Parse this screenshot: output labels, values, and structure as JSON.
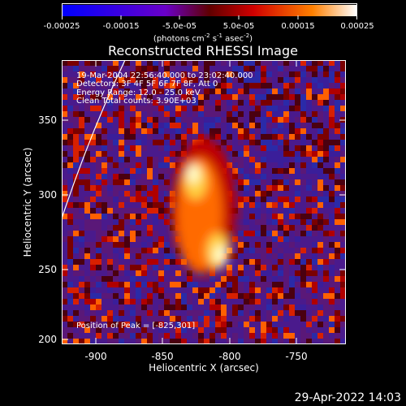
{
  "colorbar": {
    "ticks": [
      "-0.00025",
      "-0.00015",
      "-5.0e-05",
      "5.0e-05",
      "0.00015",
      "0.00025"
    ],
    "units_prefix": "(photons cm",
    "units_exp1": "-2",
    "units_mid": " s",
    "units_exp2": "-1",
    "units_mid2": " asec",
    "units_exp3": "-2",
    "units_suffix": ")",
    "colors": [
      "#0000ff",
      "#6a00c8",
      "#600000",
      "#d00000",
      "#ff8000",
      "#ffffff"
    ]
  },
  "title": "Reconstructed RHESSI Image",
  "info": {
    "time": "19-Mar-2004 22:56:40.000 to 23:02:40.000",
    "detectors": "Detectors: 3F 4F 5F 6F 7F 8F, Att 0",
    "energy": "Energy Range: 12.0 - 25.0 keV",
    "clean": "Clean    Total counts: 3.90E+03",
    "peak": "Position of Peak = [-825,301]"
  },
  "xaxis": {
    "label": "Heliocentric X (arcsec)",
    "ticks": [
      "-900",
      "-850",
      "-800",
      "-750"
    ]
  },
  "yaxis": {
    "label": "Heliocentric Y (arcsec)",
    "ticks": [
      "350",
      "300",
      "250",
      "200"
    ]
  },
  "timestamp": "29-Apr-2022 14:03"
}
